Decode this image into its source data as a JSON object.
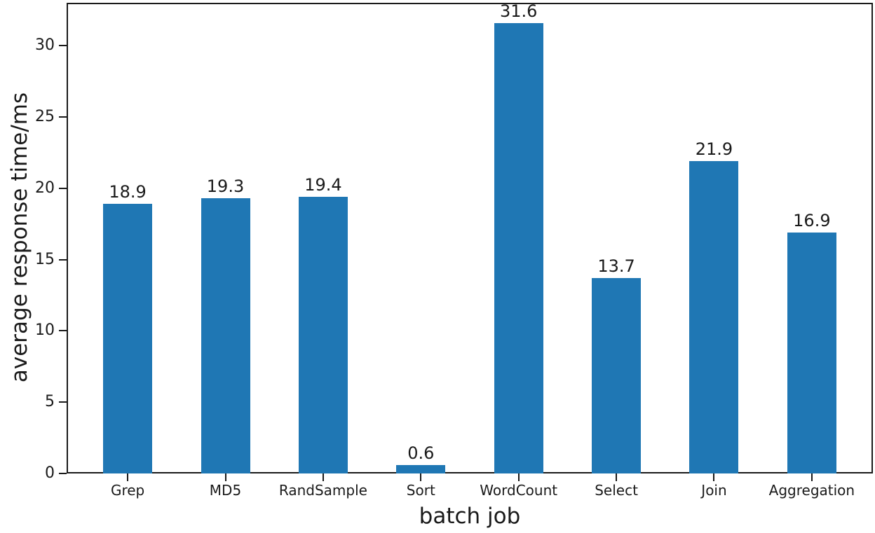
{
  "chart_data": {
    "type": "bar",
    "title": "",
    "xlabel": "batch job",
    "ylabel": "average response time/ms",
    "categories": [
      "Grep",
      "MD5",
      "RandSample",
      "Sort",
      "WordCount",
      "Select",
      "Join",
      "Aggregation"
    ],
    "values": [
      18.9,
      19.3,
      19.4,
      0.6,
      31.6,
      13.7,
      21.9,
      16.9
    ],
    "value_labels": [
      "18.9",
      "19.3",
      "19.4",
      "0.6",
      "31.6",
      "13.7",
      "21.9",
      "16.9"
    ],
    "yticks": [
      0,
      5,
      10,
      15,
      20,
      25,
      30
    ],
    "ylim": [
      0,
      33
    ],
    "grid": false,
    "legend_position": "none",
    "bar_color": "#1f77b4",
    "text_color": "#1a1a1a",
    "spine_color": "#1a1a1a"
  }
}
